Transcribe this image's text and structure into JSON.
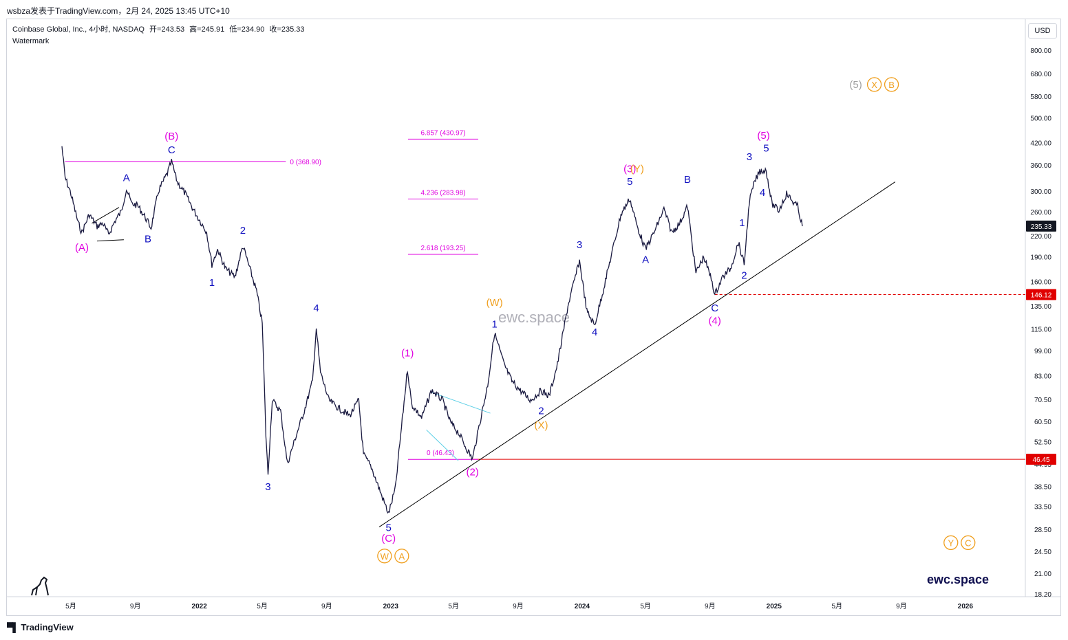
{
  "header": {
    "publisher_line": "wsbza发表于TradingView.com，2月 24, 2025 13:45 UTC+10",
    "symbol_line": "Coinbase Global, Inc., 4小时, NASDAQ",
    "ohlc": {
      "open": "开=243.53",
      "high": "高=245.91",
      "low": "低=234.90",
      "close": "收=235.33"
    },
    "indicator": "Watermark",
    "currency": "USD"
  },
  "footer": {
    "brand": "TradingView"
  },
  "colors": {
    "candle": "#1a1a40",
    "blue_wave": "#1010c0",
    "magenta_wave": "#e000e0",
    "orange_wave": "#f0a020",
    "gray_wave": "#a0a0a0",
    "trendline": "#000000",
    "support_red": "#e00000",
    "fib_line": "#e000e0",
    "triangle_line": "#5ccfe6"
  },
  "chart_data": {
    "type": "line",
    "y_scale": "log",
    "ylim": [
      17.6,
      1000
    ],
    "y_ticks": [
      "18.20",
      "21.00",
      "24.50",
      "28.50",
      "33.50",
      "38.50",
      "44.95",
      "52.50",
      "60.50",
      "70.50",
      "83.00",
      "99.00",
      "115.00",
      "135.00",
      "160.00",
      "190.00",
      "220.00",
      "260.00",
      "300.00",
      "360.00",
      "420.00",
      "500.00",
      "580.00",
      "680.00",
      "800.00"
    ],
    "x_ticks": [
      "5月",
      "9月",
      "2022",
      "5月",
      "9月",
      "2023",
      "5月",
      "9月",
      "2024",
      "5月",
      "9月",
      "2025",
      "5月",
      "9月",
      "2026"
    ],
    "price_tags": [
      {
        "label": "235.33",
        "value": 235.33
      },
      {
        "label": "146.12",
        "value": 146.12
      },
      {
        "label": "46.45",
        "value": 46.45
      }
    ],
    "series": [
      {
        "name": "",
        "points": [
          [
            "2021-04-14",
            410
          ],
          [
            "2021-04-20",
            330
          ],
          [
            "2021-05-01",
            295
          ],
          [
            "2021-05-15",
            240
          ],
          [
            "2021-05-22",
            225
          ],
          [
            "2021-06-05",
            255
          ],
          [
            "2021-06-20",
            235
          ],
          [
            "2021-07-01",
            240
          ],
          [
            "2021-07-12",
            222
          ],
          [
            "2021-07-25",
            245
          ],
          [
            "2021-08-05",
            260
          ],
          [
            "2021-08-15",
            305
          ],
          [
            "2021-08-25",
            275
          ],
          [
            "2021-09-05",
            272
          ],
          [
            "2021-09-20",
            250
          ],
          [
            "2021-10-01",
            232
          ],
          [
            "2021-10-15",
            300
          ],
          [
            "2021-11-01",
            340
          ],
          [
            "2021-11-09",
            368
          ],
          [
            "2021-11-20",
            320
          ],
          [
            "2021-12-05",
            295
          ],
          [
            "2021-12-20",
            265
          ],
          [
            "2022-01-05",
            240
          ],
          [
            "2022-01-15",
            226
          ],
          [
            "2022-01-25",
            180
          ],
          [
            "2022-02-05",
            200
          ],
          [
            "2022-02-20",
            175
          ],
          [
            "2022-03-10",
            165
          ],
          [
            "2022-03-25",
            205
          ],
          [
            "2022-04-05",
            180
          ],
          [
            "2022-04-20",
            150
          ],
          [
            "2022-05-01",
            120
          ],
          [
            "2022-05-08",
            55
          ],
          [
            "2022-05-12",
            42
          ],
          [
            "2022-05-20",
            70
          ],
          [
            "2022-06-05",
            65
          ],
          [
            "2022-06-18",
            45
          ],
          [
            "2022-07-05",
            55
          ],
          [
            "2022-07-20",
            65
          ],
          [
            "2022-08-05",
            80
          ],
          [
            "2022-08-12",
            116
          ],
          [
            "2022-08-20",
            85
          ],
          [
            "2022-09-05",
            70
          ],
          [
            "2022-09-25",
            66
          ],
          [
            "2022-10-15",
            63
          ],
          [
            "2022-11-01",
            70
          ],
          [
            "2022-11-10",
            48
          ],
          [
            "2022-11-25",
            44
          ],
          [
            "2022-12-15",
            36
          ],
          [
            "2022-12-28",
            31.8
          ],
          [
            "2023-01-10",
            38
          ],
          [
            "2023-01-20",
            55
          ],
          [
            "2023-02-02",
            87
          ],
          [
            "2023-02-10",
            68
          ],
          [
            "2023-03-01",
            62
          ],
          [
            "2023-03-20",
            75
          ],
          [
            "2023-04-10",
            70
          ],
          [
            "2023-04-25",
            60
          ],
          [
            "2023-05-10",
            56
          ],
          [
            "2023-05-20",
            52
          ],
          [
            "2023-06-06",
            46.5
          ],
          [
            "2023-06-20",
            60
          ],
          [
            "2023-07-05",
            78
          ],
          [
            "2023-07-18",
            112
          ],
          [
            "2023-08-05",
            90
          ],
          [
            "2023-08-20",
            80
          ],
          [
            "2023-09-05",
            75
          ],
          [
            "2023-09-25",
            70
          ],
          [
            "2023-10-15",
            75
          ],
          [
            "2023-10-30",
            72
          ],
          [
            "2023-11-15",
            90
          ],
          [
            "2023-12-05",
            135
          ],
          [
            "2023-12-27",
            185
          ],
          [
            "2024-01-10",
            130
          ],
          [
            "2024-01-25",
            118
          ],
          [
            "2024-02-10",
            150
          ],
          [
            "2024-03-01",
            205
          ],
          [
            "2024-03-15",
            255
          ],
          [
            "2024-04-01",
            285
          ],
          [
            "2024-04-15",
            235
          ],
          [
            "2024-05-01",
            200
          ],
          [
            "2024-05-20",
            230
          ],
          [
            "2024-06-05",
            265
          ],
          [
            "2024-06-20",
            225
          ],
          [
            "2024-07-05",
            240
          ],
          [
            "2024-07-20",
            270
          ],
          [
            "2024-08-05",
            170
          ],
          [
            "2024-08-20",
            190
          ],
          [
            "2024-09-05",
            160
          ],
          [
            "2024-09-10",
            146
          ],
          [
            "2024-09-25",
            165
          ],
          [
            "2024-10-10",
            175
          ],
          [
            "2024-10-25",
            210
          ],
          [
            "2024-11-05",
            180
          ],
          [
            "2024-11-15",
            280
          ],
          [
            "2024-11-25",
            320
          ],
          [
            "2024-12-05",
            345
          ],
          [
            "2024-12-17",
            347
          ],
          [
            "2024-12-28",
            275
          ],
          [
            "2025-01-10",
            262
          ],
          [
            "2025-01-25",
            295
          ],
          [
            "2025-02-05",
            280
          ],
          [
            "2025-02-15",
            270
          ],
          [
            "2025-02-24",
            235
          ]
        ]
      }
    ],
    "trendline": {
      "from": [
        "2022-12-10",
        29.0
      ],
      "to": [
        "2025-08-20",
        320.0
      ]
    },
    "horizontal_lines": [
      {
        "name": "fib-0-high",
        "value": 368.9,
        "from": "2021-04-20",
        "to": "2022-06-15",
        "label": "0 (368.90)"
      },
      {
        "name": "support-46",
        "value": 46.45,
        "from": "2023-06-06",
        "to": "2026-05-01",
        "label": ""
      },
      {
        "name": "level-146",
        "value": 146.12,
        "from": "2024-09-10",
        "to": "2026-05-01",
        "label": ""
      }
    ],
    "fib_levels": [
      {
        "label": "6.857 (430.97)",
        "value": 430.97
      },
      {
        "label": "4.236 (283.98)",
        "value": 283.98
      },
      {
        "label": "2.618 (193.25)",
        "value": 193.25
      },
      {
        "label": "0 (46.43)",
        "value": 46.43
      }
    ],
    "annotations": [
      {
        "text": "(A)",
        "date": "2021-05-22",
        "price": 198,
        "color": "magenta"
      },
      {
        "text": "A",
        "date": "2021-08-15",
        "price": 322,
        "color": "blue"
      },
      {
        "text": "B",
        "date": "2021-09-25",
        "price": 210,
        "color": "blue"
      },
      {
        "text": "(B)",
        "date": "2021-11-09",
        "price": 430,
        "color": "magenta"
      },
      {
        "text": "C",
        "date": "2021-11-09",
        "price": 390,
        "color": "blue"
      },
      {
        "text": "1",
        "date": "2022-01-25",
        "price": 155,
        "color": "blue"
      },
      {
        "text": "2",
        "date": "2022-03-25",
        "price": 223,
        "color": "blue"
      },
      {
        "text": "3",
        "date": "2022-05-12",
        "price": 37.5,
        "color": "blue"
      },
      {
        "text": "4",
        "date": "2022-08-12",
        "price": 130,
        "color": "blue"
      },
      {
        "text": "5",
        "date": "2022-12-28",
        "price": 28.2,
        "color": "blue"
      },
      {
        "text": "(C)",
        "date": "2022-12-28",
        "price": 26.2,
        "color": "magenta"
      },
      {
        "text": "(1)",
        "date": "2023-02-02",
        "price": 95,
        "color": "magenta"
      },
      {
        "text": "(2)",
        "date": "2023-06-06",
        "price": 41.5,
        "color": "magenta"
      },
      {
        "text": "(W)",
        "date": "2023-07-18",
        "price": 135,
        "color": "orange"
      },
      {
        "text": "1",
        "date": "2023-07-18",
        "price": 116,
        "color": "blue"
      },
      {
        "text": "2",
        "date": "2023-10-15",
        "price": 63.5,
        "color": "blue"
      },
      {
        "text": "(X)",
        "date": "2023-10-15",
        "price": 57.5,
        "color": "orange"
      },
      {
        "text": "3",
        "date": "2023-12-27",
        "price": 202,
        "color": "blue"
      },
      {
        "text": "4",
        "date": "2024-01-25",
        "price": 110,
        "color": "blue"
      },
      {
        "text": "5",
        "date": "2024-04-01",
        "price": 313,
        "color": "blue"
      },
      {
        "text": "(3)",
        "date": "2024-04-01",
        "price": 342,
        "color": "magenta"
      },
      {
        "text": "(Y)",
        "date": "2024-04-15",
        "price": 342,
        "color": "orange"
      },
      {
        "text": "A",
        "date": "2024-05-01",
        "price": 182,
        "color": "blue"
      },
      {
        "text": "B",
        "date": "2024-07-20",
        "price": 318,
        "color": "blue"
      },
      {
        "text": "C",
        "date": "2024-09-10",
        "price": 130,
        "color": "blue"
      },
      {
        "text": "(4)",
        "date": "2024-09-10",
        "price": 119,
        "color": "magenta"
      },
      {
        "text": "2",
        "date": "2024-11-05",
        "price": 163,
        "color": "blue"
      },
      {
        "text": "1",
        "date": "2024-11-01",
        "price": 235,
        "color": "blue"
      },
      {
        "text": "3",
        "date": "2024-11-15",
        "price": 372,
        "color": "blue"
      },
      {
        "text": "4",
        "date": "2024-12-10",
        "price": 290,
        "color": "blue"
      },
      {
        "text": "5",
        "date": "2024-12-17",
        "price": 395,
        "color": "blue"
      },
      {
        "text": "(5)",
        "date": "2024-12-12",
        "price": 432,
        "color": "magenta"
      }
    ],
    "circled_labels": [
      {
        "date": "2023-01-05",
        "price": 23.7,
        "items": [
          {
            "text": "W",
            "color": "orange"
          },
          {
            "text": "A",
            "color": "orange"
          }
        ]
      },
      {
        "date": "2025-07-10",
        "price": 630,
        "items": [
          {
            "text": "(5)",
            "color": "gray",
            "plain": true
          },
          {
            "text": "X",
            "color": "orange"
          },
          {
            "text": "B",
            "color": "orange"
          }
        ]
      },
      {
        "date": "2025-12-20",
        "price": 26.0,
        "items": [
          {
            "text": "Y",
            "color": "orange"
          },
          {
            "text": "C",
            "color": "orange"
          }
        ]
      }
    ],
    "watermarks": [
      {
        "text": "ewc.space",
        "color": "#b0b0b8",
        "size": 22,
        "bold": false
      },
      {
        "text": "ewc.space",
        "color": "#101050",
        "size": 18,
        "bold": true
      }
    ]
  }
}
